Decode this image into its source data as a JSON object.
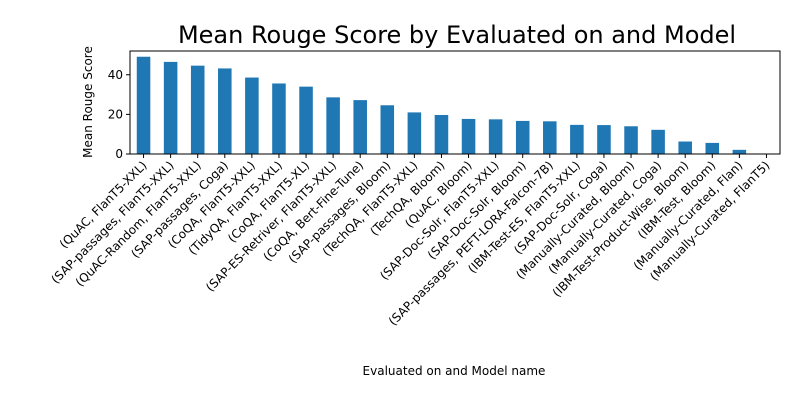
{
  "chart_data": {
    "type": "bar",
    "title": "Mean Rouge Score by Evaluated on and Model",
    "xlabel": "Evaluated on and Model name",
    "ylabel": "Mean Rouge Score",
    "ylim": [
      0,
      52
    ],
    "yticks": [
      0,
      20,
      40
    ],
    "grid": false,
    "legend": "none",
    "bar_color": "#1f77b4",
    "categories": [
      "(QuAC, FlanT5-XXL)",
      "(SAP-passages, FlanT5-XXL)",
      "(QuAC-Random, FlanT5-XXL)",
      "(SAP-passages, Coga)",
      "(CoQA, FlanT5-XXL)",
      "(TidyQA, FlanT5-XXL)",
      "(CoQA, FlanT5-XL)",
      "(SAP-ES-Retriver, FlanT5-XXL)",
      "(CoQA, Bert-Fine-Tune)",
      "(SAP-passages, Bloom)",
      "(TechQA, FlanT5-XXL)",
      "(TechQA, Bloom)",
      "(QuAC, Bloom)",
      "(SAP-Doc-Solr, FlanT5-XXL)",
      "(SAP-Doc-Solr, Bloom)",
      "(SAP-passages, PEFT-LORA-Falcon-7B)",
      "(IBM-Test-ES, FlanT5-XXL)",
      "(SAP-Doc-Solr, Coga)",
      "(Manually-Curated, Bloom)",
      "(Manually-Curated, Coga)",
      "(IBM-Test-Product-Wise, Bloom)",
      "(IBM-Test, Bloom)",
      "(Manually-Curated, Flan)",
      "(Manually-Curated, FlanT5)"
    ],
    "values": [
      49.1,
      46.5,
      44.6,
      43.2,
      38.6,
      35.6,
      34.0,
      28.6,
      27.2,
      24.6,
      21.0,
      19.7,
      17.7,
      17.5,
      16.7,
      16.5,
      14.7,
      14.6,
      14.0,
      12.2,
      6.3,
      5.6,
      2.1,
      0.2
    ]
  }
}
